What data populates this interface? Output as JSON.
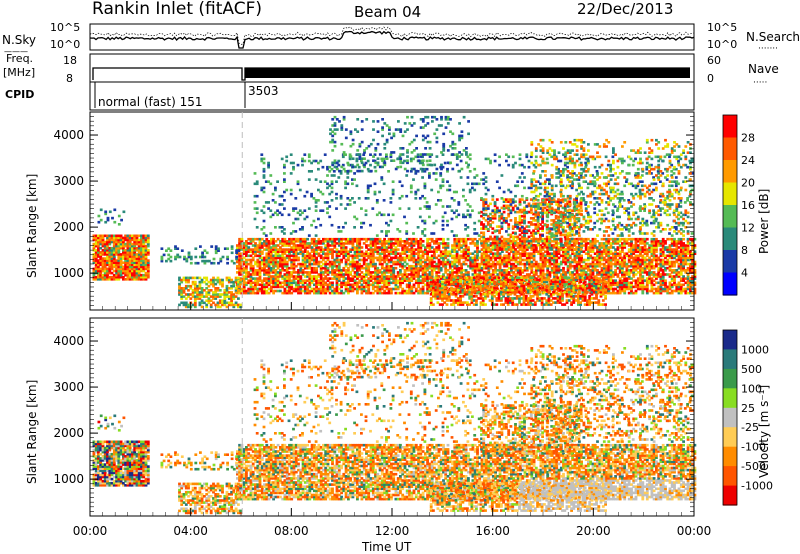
{
  "header": {
    "station": "Rankin Inlet (fitACF)",
    "beam": "Beam 04",
    "date": "22/Dec/2013"
  },
  "noise_panel": {
    "left_label": "N.Sky",
    "right_label": "N.Search",
    "left_ticks": [
      "10^5",
      "10^0"
    ],
    "right_ticks": [
      "10^5",
      "10^0"
    ],
    "left_key": "———",
    "right_key": "·······"
  },
  "freq_panel": {
    "left_label_1": "Freq.",
    "left_label_2": "[MHz]",
    "right_label": "Nave",
    "left_ticks": [
      "18",
      "8"
    ],
    "right_ticks": [
      "60",
      "0"
    ],
    "right_key": "·····"
  },
  "cpid_panel": {
    "label": "CPID",
    "mode_1": "normal (fast) 151",
    "mode_2": "3503"
  },
  "colors": {
    "white": "#ffffff",
    "black": "#000000",
    "gridline": "#bdbdbd"
  },
  "chart_data": [
    {
      "type": "heatmap",
      "name": "power",
      "ylabel": "Slant Range [km]",
      "yticks": [
        "1000",
        "2000",
        "3000",
        "4000"
      ],
      "ylim": [
        200,
        4500
      ],
      "xlim": [
        0,
        24
      ],
      "colorbar_label": "Power [dB]",
      "colorbar_ticks": [
        "28",
        "24",
        "20",
        "16",
        "12",
        "8",
        "4"
      ],
      "colorbar_colors": [
        "#ff0000",
        "#ff5a00",
        "#ff9a00",
        "#e6e600",
        "#55bb55",
        "#2a8a7a",
        "#1a3aa6",
        "#0000ff"
      ]
    },
    {
      "type": "heatmap",
      "name": "velocity",
      "ylabel": "Slant Range [km]",
      "yticks": [
        "1000",
        "2000",
        "3000",
        "4000"
      ],
      "ylim": [
        200,
        4500
      ],
      "xlim": [
        0,
        24
      ],
      "xlabel": "Time UT",
      "xticks": [
        "00:00",
        "04:00",
        "08:00",
        "12:00",
        "16:00",
        "20:00",
        "00:00"
      ],
      "colorbar_label": "Velocity [m s⁻¹]",
      "colorbar_ticks": [
        "1000",
        "500",
        "100",
        "25",
        "-25",
        "-100",
        "-500",
        "-1000"
      ],
      "colorbar_colors": [
        "#1a2a8a",
        "#2a7a7a",
        "#3a9a4a",
        "#88dd22",
        "#c0c0c0",
        "#ffcc55",
        "#ff8c00",
        "#ff5500",
        "#ee0000"
      ]
    }
  ]
}
